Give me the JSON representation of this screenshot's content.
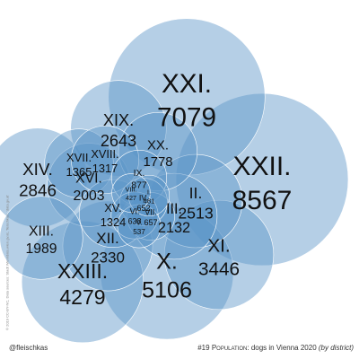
{
  "chart_data": {
    "type": "bubble",
    "title": "#19 Population: dogs in Vienna 2020 (by district)",
    "title_parts": {
      "prefix": "#19 ",
      "topic": "Population",
      "main": ": dogs in Vienna 2020 ",
      "qualifier": "(by district)"
    },
    "districts": [
      {
        "name": "XXII.",
        "value": 8567
      },
      {
        "name": "XXI.",
        "value": 7079
      },
      {
        "name": "X.",
        "value": 5106
      },
      {
        "name": "XXIII.",
        "value": 4279
      },
      {
        "name": "XI.",
        "value": 3446
      },
      {
        "name": "XIV.",
        "value": 2846
      },
      {
        "name": "XIX.",
        "value": 2643
      },
      {
        "name": "II.",
        "value": 2513
      },
      {
        "name": "XII.",
        "value": 2330
      },
      {
        "name": "III.",
        "value": 2132
      },
      {
        "name": "XVI.",
        "value": 2003
      },
      {
        "name": "XIII.",
        "value": 1989
      },
      {
        "name": "XX.",
        "value": 1778
      },
      {
        "name": "XVII.",
        "value": 1365
      },
      {
        "name": "XV.",
        "value": 1324
      },
      {
        "name": "XVIII.",
        "value": 1317
      },
      {
        "name": "IX.",
        "value": 877
      },
      {
        "name": "VII.",
        "value": 657
      },
      {
        "name": "IV.",
        "value": 652
      },
      {
        "name": "VI.",
        "value": 638
      },
      {
        "name": "V.",
        "value": 537
      },
      {
        "name": "I.",
        "value": 481
      },
      {
        "name": "VIII.",
        "value": 427
      }
    ],
    "color": "#5c95c8"
  },
  "credits": {
    "author": "@fleischkas",
    "source": "© 2019 CC-BY-NC, Data sources: Stadt Wien/data.wien.gv.at, 'fleischkas', 'data.gv.at'"
  }
}
